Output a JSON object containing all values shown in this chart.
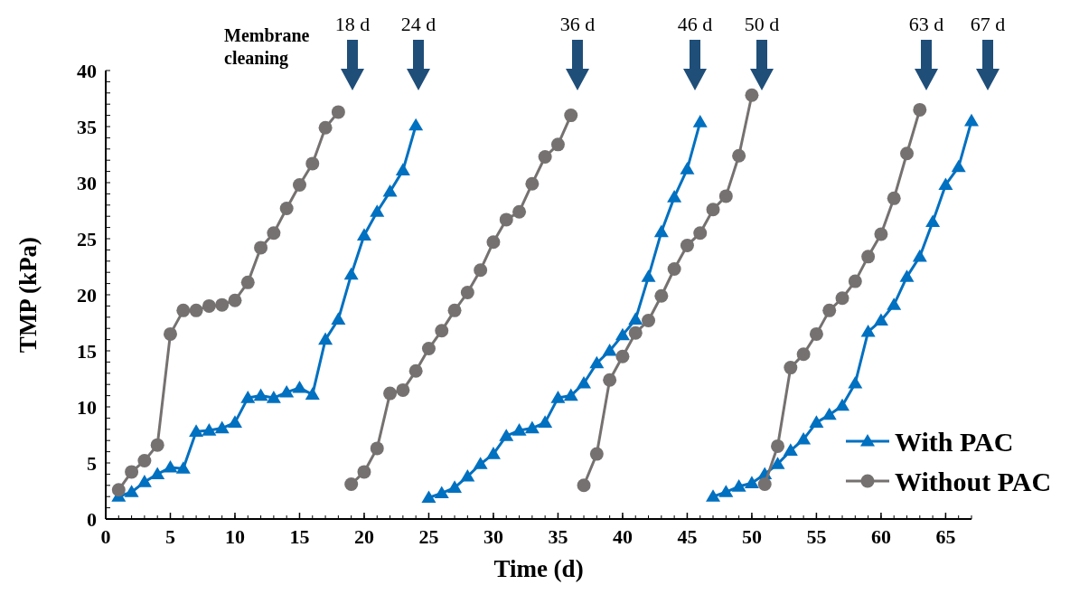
{
  "chart_data": {
    "type": "line",
    "xlabel": "Time (d)",
    "ylabel": "TMP (kPa)",
    "xlim": [
      0,
      67
    ],
    "xticks": [
      0,
      5,
      10,
      15,
      20,
      25,
      30,
      35,
      40,
      45,
      50,
      55,
      60,
      65
    ],
    "ylim": [
      0,
      40
    ],
    "yticks": [
      0,
      5,
      10,
      15,
      20,
      25,
      30,
      35,
      40
    ],
    "legend": "bottom right",
    "grid": false,
    "annotations": [
      "Membrane cleaning",
      "18 d",
      "24 d",
      "36 d",
      "46 d",
      "50 d",
      "63 d",
      "67 d"
    ],
    "series": [
      {
        "name": "With PAC",
        "color": "#0070c0",
        "marker": "triangle",
        "x": [
          1,
          2,
          3,
          4,
          5,
          6,
          7,
          8,
          9,
          10,
          11,
          12,
          13,
          14,
          15,
          16,
          17,
          18,
          19,
          20,
          21,
          22,
          23,
          24
        ],
        "values": [
          2.0,
          2.4,
          3.3,
          4.0,
          4.6,
          4.5,
          7.8,
          7.9,
          8.1,
          8.6,
          10.8,
          11.0,
          10.8,
          11.3,
          11.7,
          11.1,
          16.0,
          17.8,
          21.8,
          25.3,
          27.4,
          29.2,
          31.1,
          35.1
        ]
      },
      {
        "name": "Without PAC",
        "color": "#767171",
        "marker": "circle",
        "x": [
          1,
          2,
          3,
          4,
          5,
          6,
          7,
          8,
          9,
          10,
          11,
          12,
          13,
          14,
          15,
          16,
          17,
          18
        ],
        "values": [
          2.6,
          4.2,
          5.2,
          6.6,
          16.5,
          18.6,
          18.6,
          19.0,
          19.1,
          19.5,
          21.1,
          24.2,
          25.5,
          27.7,
          29.8,
          31.7,
          34.9,
          36.3
        ]
      },
      {
        "color": "#0070c0",
        "marker": "triangle",
        "x": [
          25,
          26,
          27,
          28,
          29,
          30,
          31,
          32,
          33,
          34,
          35,
          36,
          37,
          38,
          39,
          40,
          41,
          42,
          43,
          44,
          45,
          46
        ],
        "values": [
          1.9,
          2.3,
          2.8,
          3.8,
          4.9,
          5.8,
          7.4,
          7.9,
          8.1,
          8.6,
          10.8,
          11.0,
          12.1,
          13.9,
          15.0,
          16.4,
          17.8,
          21.6,
          25.6,
          28.7,
          31.2,
          35.4
        ]
      },
      {
        "color": "#0070c0",
        "marker": "triangle",
        "x": [
          47,
          48,
          49,
          50,
          51,
          52,
          53,
          54,
          55,
          56,
          57,
          58,
          59,
          60,
          61,
          62,
          63,
          64,
          65,
          66,
          67
        ],
        "values": [
          2.0,
          2.4,
          2.9,
          3.2,
          4.0,
          4.9,
          6.1,
          7.1,
          8.6,
          9.3,
          10.1,
          12.1,
          16.7,
          17.7,
          19.1,
          21.6,
          23.4,
          26.5,
          29.8,
          31.4,
          35.5
        ]
      },
      {
        "color": "#767171",
        "marker": "circle",
        "x": [
          19,
          20,
          21,
          22,
          23,
          24,
          25,
          26,
          27,
          28,
          29,
          30,
          31,
          32,
          33,
          34,
          35,
          36
        ],
        "values": [
          3.1,
          4.2,
          6.3,
          11.2,
          11.5,
          13.2,
          15.2,
          16.8,
          18.6,
          20.2,
          22.2,
          24.7,
          26.7,
          27.4,
          29.9,
          32.3,
          33.4,
          36.0
        ]
      },
      {
        "color": "#767171",
        "marker": "circle",
        "x": [
          37,
          38,
          39,
          40,
          41,
          42,
          43,
          44,
          45,
          46,
          47,
          48,
          49,
          50
        ],
        "values": [
          3.0,
          5.8,
          12.4,
          14.5,
          16.6,
          17.7,
          19.9,
          22.3,
          24.4,
          25.5,
          27.6,
          28.8,
          32.4,
          37.8
        ]
      },
      {
        "color": "#767171",
        "marker": "circle",
        "x": [
          51,
          52,
          53,
          54,
          55,
          56,
          57,
          58,
          59,
          60,
          61,
          62,
          63
        ],
        "values": [
          3.1,
          6.5,
          13.5,
          14.7,
          16.5,
          18.6,
          19.7,
          21.2,
          23.4,
          25.4,
          28.6,
          32.6,
          36.5
        ]
      }
    ]
  }
}
